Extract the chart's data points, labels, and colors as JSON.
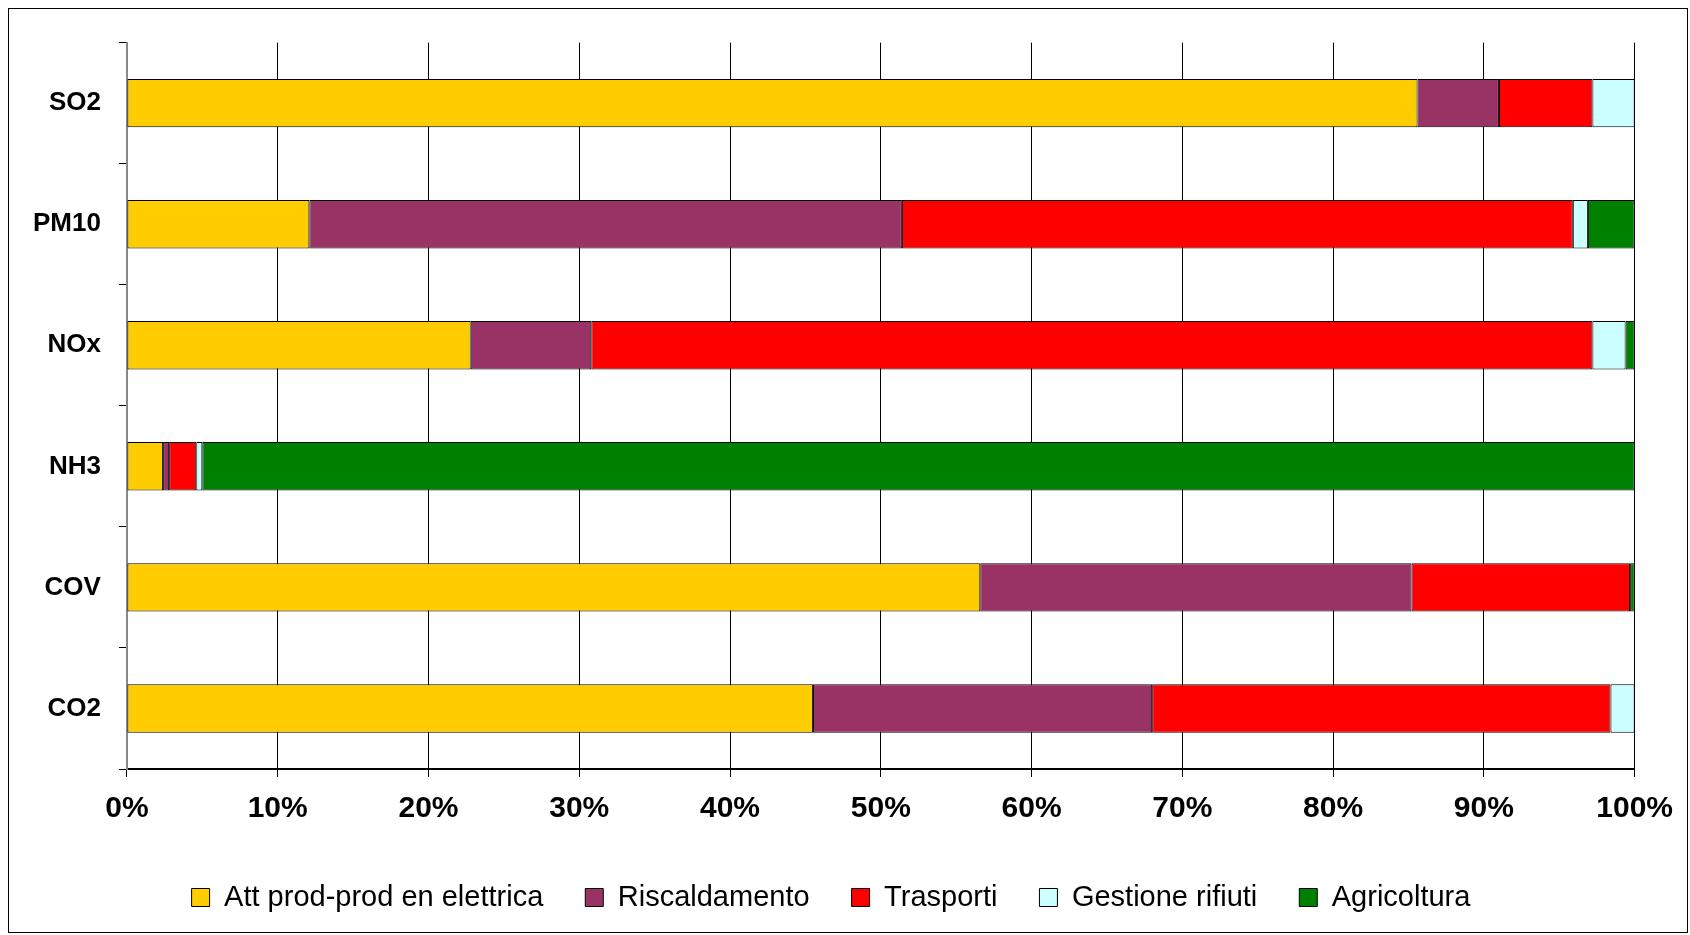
{
  "chart_data": {
    "type": "bar",
    "orientation": "horizontal",
    "stacked": true,
    "categories": [
      "SO2",
      "PM10",
      "NOx",
      "NH3",
      "COV",
      "CO2"
    ],
    "series": [
      {
        "name": "Att prod-prod en elettrica",
        "color": "#ffcc00",
        "values": [
          85.6,
          12.1,
          22.8,
          2.4,
          56.6,
          45.5
        ]
      },
      {
        "name": "Riscaldamento",
        "color": "#993366",
        "values": [
          5.4,
          39.3,
          8.0,
          0.4,
          28.6,
          22.5
        ]
      },
      {
        "name": "Trasporti",
        "color": "#ff0000",
        "values": [
          6.2,
          44.5,
          66.4,
          1.8,
          14.5,
          30.4
        ]
      },
      {
        "name": "Gestione rifiuti",
        "color": "#ccffff",
        "values": [
          2.8,
          1.0,
          2.2,
          0.4,
          0,
          1.6
        ]
      },
      {
        "name": "Agricoltura",
        "color": "#008000",
        "values": [
          0,
          3.1,
          0.6,
          95.0,
          0.3,
          0
        ]
      }
    ],
    "xlim": [
      0,
      100
    ],
    "xticks": [
      {
        "value": 0,
        "label": "0%"
      },
      {
        "value": 10,
        "label": "10%"
      },
      {
        "value": 20,
        "label": "20%"
      },
      {
        "value": 30,
        "label": "30%"
      },
      {
        "value": 40,
        "label": "40%"
      },
      {
        "value": 50,
        "label": "50%"
      },
      {
        "value": 60,
        "label": "60%"
      },
      {
        "value": 70,
        "label": "70%"
      },
      {
        "value": 80,
        "label": "80%"
      },
      {
        "value": 90,
        "label": "90%"
      },
      {
        "value": 100,
        "label": "100%"
      }
    ],
    "grid": "x",
    "legend": "bottom"
  }
}
